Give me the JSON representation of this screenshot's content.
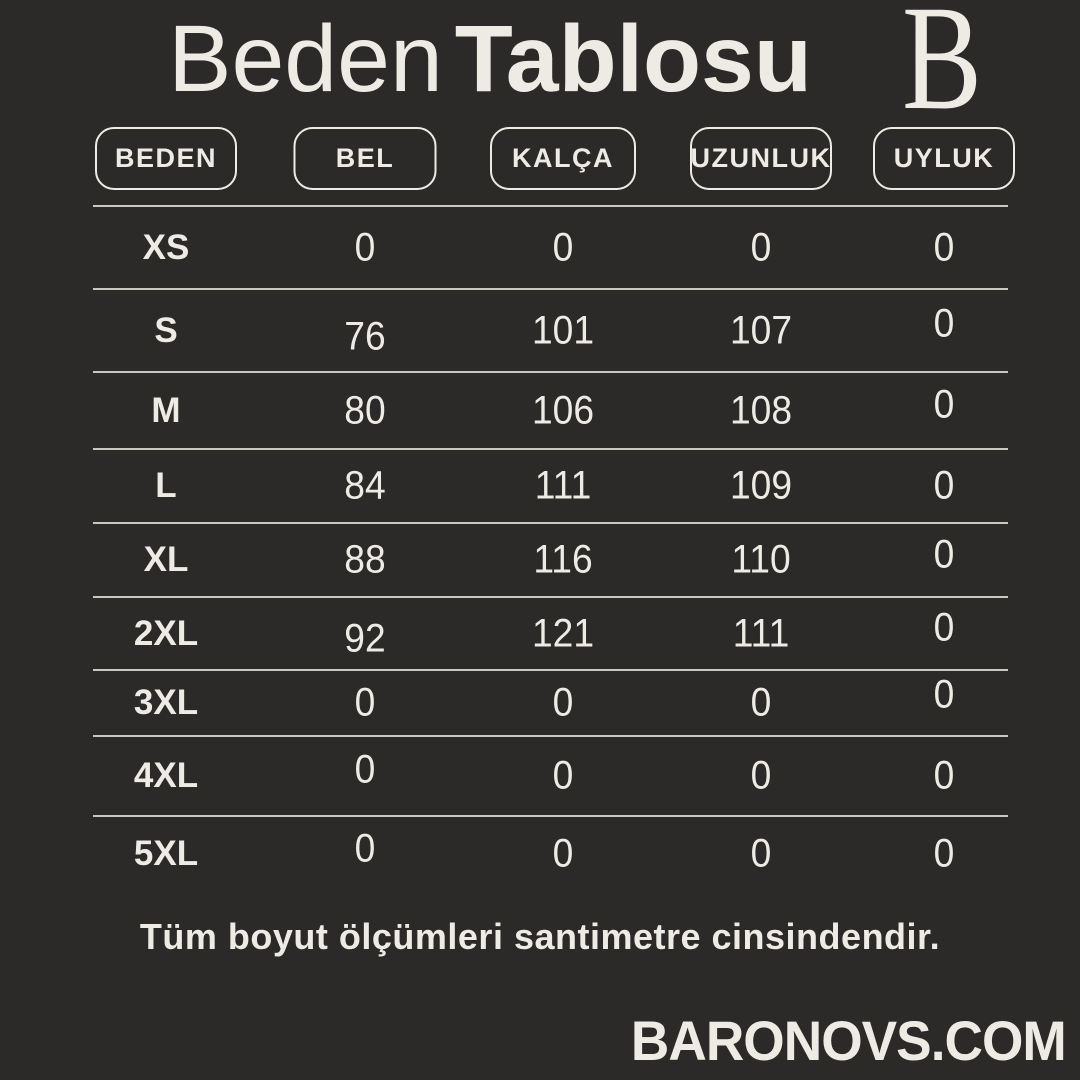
{
  "colors": {
    "background": "#2b2a28",
    "text": "#edebe4",
    "table_line": "#c9c7c1"
  },
  "header": {
    "title_regular": "Beden",
    "title_bold": "Tablosu",
    "logo_letter": "B"
  },
  "chart_data": {
    "type": "table",
    "title": "Beden Tablosu",
    "columns": [
      "BEDEN",
      "BEL",
      "KALÇA",
      "UZUNLUK",
      "UYLUK"
    ],
    "rows": [
      {
        "size": "XS",
        "values": [
          0,
          0,
          0,
          0
        ]
      },
      {
        "size": "S",
        "values": [
          76,
          101,
          107,
          0
        ]
      },
      {
        "size": "M",
        "values": [
          80,
          106,
          108,
          0
        ]
      },
      {
        "size": "L",
        "values": [
          84,
          111,
          109,
          0
        ]
      },
      {
        "size": "XL",
        "values": [
          88,
          116,
          110,
          0
        ]
      },
      {
        "size": "2XL",
        "values": [
          92,
          121,
          111,
          0
        ]
      },
      {
        "size": "3XL",
        "values": [
          0,
          0,
          0,
          0
        ]
      },
      {
        "size": "4XL",
        "values": [
          0,
          0,
          0,
          0
        ]
      },
      {
        "size": "5XL",
        "values": [
          0,
          0,
          0,
          0
        ]
      }
    ],
    "note": "Tüm boyut ölçümleri santimetre cinsindendir."
  },
  "footer": {
    "website": "BARONOVS.COM"
  }
}
